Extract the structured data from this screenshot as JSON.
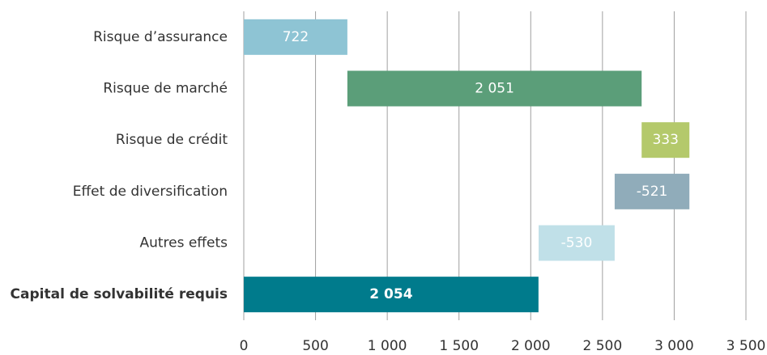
{
  "chart_data": {
    "type": "waterfall",
    "categories": [
      "Risque d’assurance",
      "Risque de marché",
      "Risque de crédit",
      "Effet de diversification",
      "Autres effets",
      "Capital de solvabilité requis"
    ],
    "values": [
      722,
      2051,
      333,
      -521,
      -530,
      2054
    ],
    "value_labels": [
      "722",
      "2 051",
      "333",
      "-521",
      "-530",
      "2 054"
    ],
    "colors": [
      "#8ec4d4",
      "#5b9e79",
      "#b4c96b",
      "#90acba",
      "#c0e0e8",
      "#007b8c"
    ],
    "xlim": [
      0,
      3500
    ],
    "xticks": [
      0,
      500,
      {
        "value": 1000,
        "label": "1 000"
      },
      {
        "value": 1500,
        "label": "1 500"
      },
      {
        "value": 2000,
        "label": "2 000"
      },
      {
        "value": 2500,
        "label": "2 500"
      },
      {
        "value": 3000,
        "label": "3 000"
      },
      {
        "value": 3500,
        "label": "3 500"
      }
    ],
    "grid": true
  }
}
